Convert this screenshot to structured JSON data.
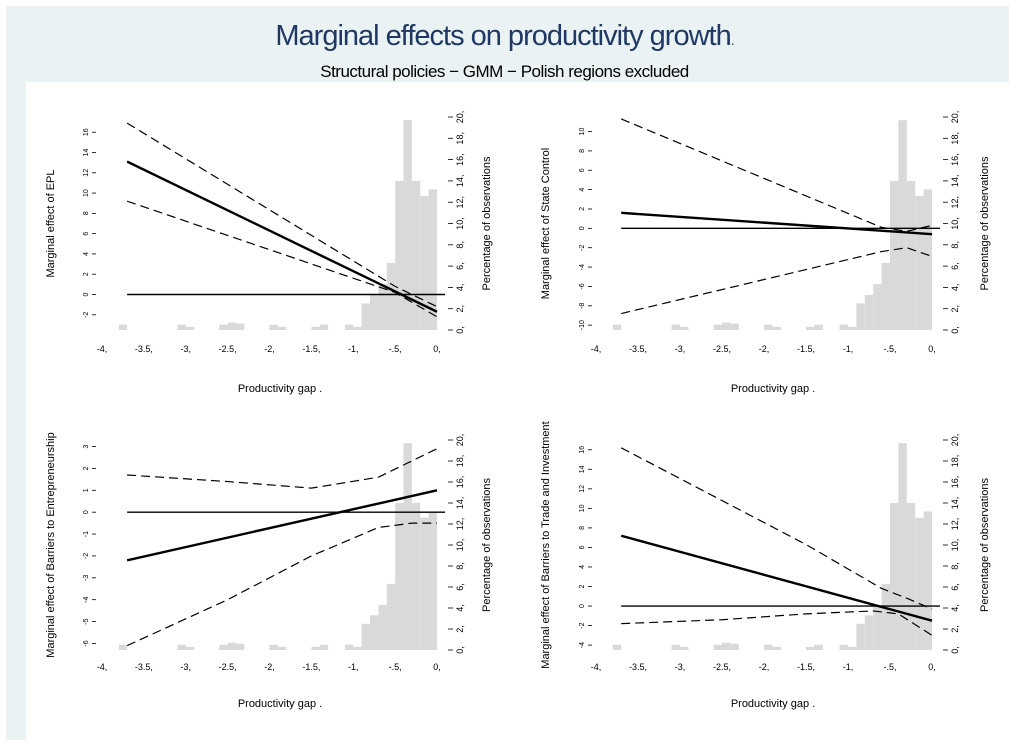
{
  "title": "Marginal effects on productivity growth",
  "title_suffix": ".",
  "subtitle": "Structural policies − GMM − Polish regions excluded",
  "colors": {
    "title": "#1f3864",
    "background": "#eaf2f3",
    "histogram": "#d9d9d9",
    "lines": "#000000"
  },
  "chart_data": [
    {
      "type": "line",
      "xlabel": "Productivity gap",
      "ylabel": "Marginal effect of EPL",
      "y2label": "Percentage of observations",
      "xlim": [
        -4,
        0
      ],
      "xticks": [
        -4,
        -3.5,
        -3,
        -2.5,
        -2,
        -1.5,
        -1,
        -0.5,
        0
      ],
      "xtick_labels": [
        "-4,",
        "-3.5,",
        "-3,",
        "-2.5,",
        "-2,",
        "-1.5,",
        "-1,",
        "-.5,",
        "0,"
      ],
      "ylim": [
        -3.5,
        17.5
      ],
      "yticks": [
        -2,
        0,
        2,
        4,
        6,
        8,
        10,
        12,
        14,
        16
      ],
      "ytick_labels": [
        "-2",
        "0",
        "2",
        "4",
        "6",
        "8",
        "10",
        "12",
        "14",
        "16"
      ],
      "y2lim": [
        0,
        20
      ],
      "y2ticks": [
        0,
        2,
        4,
        6,
        8,
        10,
        12,
        14,
        16,
        18,
        20
      ],
      "y2tick_labels": [
        "0,",
        "2,",
        "4,",
        "6,",
        "8,",
        "10,",
        "12,",
        "14,",
        "16,",
        "18,",
        "20,"
      ],
      "zero_line": 0,
      "series": [
        {
          "role": "estimate",
          "x": [
            -3.7,
            0
          ],
          "y": [
            13.1,
            -1.7
          ]
        },
        {
          "role": "ci_upper",
          "x": [
            -3.7,
            -0.5,
            0
          ],
          "y": [
            16.9,
            0.8,
            -1.2
          ]
        },
        {
          "role": "ci_lower",
          "x": [
            -3.7,
            -0.5,
            0
          ],
          "y": [
            9.2,
            0.2,
            -2.2
          ]
        }
      ],
      "histogram": {
        "bin_width": 0.1,
        "bins": [
          {
            "x": -3.75,
            "pct": 0.5
          },
          {
            "x": -3.05,
            "pct": 0.5
          },
          {
            "x": -2.95,
            "pct": 0.3
          },
          {
            "x": -2.55,
            "pct": 0.5
          },
          {
            "x": -2.45,
            "pct": 0.7
          },
          {
            "x": -2.35,
            "pct": 0.6
          },
          {
            "x": -1.95,
            "pct": 0.5
          },
          {
            "x": -1.85,
            "pct": 0.3
          },
          {
            "x": -1.45,
            "pct": 0.3
          },
          {
            "x": -1.35,
            "pct": 0.5
          },
          {
            "x": -1.05,
            "pct": 0.5
          },
          {
            "x": -0.95,
            "pct": 0.3
          },
          {
            "x": -0.85,
            "pct": 2.5
          },
          {
            "x": -0.75,
            "pct": 3.3
          },
          {
            "x": -0.65,
            "pct": 4.3
          },
          {
            "x": -0.55,
            "pct": 6.3
          },
          {
            "x": -0.45,
            "pct": 14.0
          },
          {
            "x": -0.35,
            "pct": 19.7
          },
          {
            "x": -0.25,
            "pct": 14.0
          },
          {
            "x": -0.15,
            "pct": 12.6
          },
          {
            "x": -0.05,
            "pct": 13.2
          }
        ]
      }
    },
    {
      "type": "line",
      "xlabel": "Productivity gap",
      "ylabel": "Marginal effect of State Control",
      "y2label": "Percentage of observations",
      "xlim": [
        -4,
        0
      ],
      "xticks": [
        -4,
        -3.5,
        -3,
        -2.5,
        -2,
        -1.5,
        -1,
        -0.5,
        0
      ],
      "xtick_labels": [
        "-4,",
        "-3.5,",
        "-3,",
        "-2.5,",
        "-2,",
        "-1.5,",
        "-1,",
        "-.5,",
        "0,"
      ],
      "ylim": [
        -10.5,
        11.5
      ],
      "yticks": [
        -10,
        -8,
        -6,
        -4,
        -2,
        0,
        2,
        4,
        6,
        8,
        10
      ],
      "ytick_labels": [
        "-10",
        "-8",
        "-6",
        "-4",
        "-2",
        "0",
        "2",
        "4",
        "6",
        "8",
        "10"
      ],
      "y2lim": [
        0,
        20
      ],
      "y2ticks": [
        0,
        2,
        4,
        6,
        8,
        10,
        12,
        14,
        16,
        18,
        20
      ],
      "y2tick_labels": [
        "0,",
        "2,",
        "4,",
        "6,",
        "8,",
        "10,",
        "12,",
        "14,",
        "16,",
        "18,",
        "20,"
      ],
      "zero_line": 0,
      "series": [
        {
          "role": "estimate",
          "x": [
            -3.7,
            0
          ],
          "y": [
            1.6,
            -0.6
          ]
        },
        {
          "role": "ci_upper",
          "x": [
            -3.7,
            -0.6,
            -0.3,
            0
          ],
          "y": [
            11.3,
            0.1,
            -0.3,
            0.3
          ]
        },
        {
          "role": "ci_lower",
          "x": [
            -3.7,
            -0.6,
            -0.3,
            0
          ],
          "y": [
            -8.8,
            -2.4,
            -2.0,
            -2.9
          ]
        }
      ],
      "histogram": {
        "bin_width": 0.1,
        "bins": [
          {
            "x": -3.75,
            "pct": 0.5
          },
          {
            "x": -3.05,
            "pct": 0.5
          },
          {
            "x": -2.95,
            "pct": 0.3
          },
          {
            "x": -2.55,
            "pct": 0.5
          },
          {
            "x": -2.45,
            "pct": 0.7
          },
          {
            "x": -2.35,
            "pct": 0.6
          },
          {
            "x": -1.95,
            "pct": 0.5
          },
          {
            "x": -1.85,
            "pct": 0.3
          },
          {
            "x": -1.45,
            "pct": 0.3
          },
          {
            "x": -1.35,
            "pct": 0.5
          },
          {
            "x": -1.05,
            "pct": 0.5
          },
          {
            "x": -0.95,
            "pct": 0.3
          },
          {
            "x": -0.85,
            "pct": 2.5
          },
          {
            "x": -0.75,
            "pct": 3.3
          },
          {
            "x": -0.65,
            "pct": 4.3
          },
          {
            "x": -0.55,
            "pct": 6.3
          },
          {
            "x": -0.45,
            "pct": 14.0
          },
          {
            "x": -0.35,
            "pct": 19.7
          },
          {
            "x": -0.25,
            "pct": 14.0
          },
          {
            "x": -0.15,
            "pct": 12.6
          },
          {
            "x": -0.05,
            "pct": 13.2
          }
        ]
      }
    },
    {
      "type": "line",
      "xlabel": "Productivity gap",
      "ylabel": "Marginal effect of Barriers to Entrepreneurship",
      "y2label": "Percentage of observations",
      "xlim": [
        -4,
        0
      ],
      "xticks": [
        -4,
        -3.5,
        -3,
        -2.5,
        -2,
        -1.5,
        -1,
        -0.5,
        0
      ],
      "xtick_labels": [
        "-4,",
        "-3.5,",
        "-3,",
        "-2.5,",
        "-2,",
        "-1.5,",
        "-1,",
        "-.5,",
        "0,"
      ],
      "ylim": [
        -6.3,
        3.3
      ],
      "yticks": [
        -6,
        -5,
        -4,
        -3,
        -2,
        -1,
        0,
        1,
        2,
        3
      ],
      "ytick_labels": [
        "-6",
        "-5",
        "-4",
        "-3",
        "-2",
        "-1",
        "0",
        "1",
        "2",
        "3"
      ],
      "y2lim": [
        0,
        20
      ],
      "y2ticks": [
        0,
        2,
        4,
        6,
        8,
        10,
        12,
        14,
        16,
        18,
        20
      ],
      "y2tick_labels": [
        "0,",
        "2,",
        "4,",
        "6,",
        "8,",
        "10,",
        "12,",
        "14,",
        "16,",
        "18,",
        "20,"
      ],
      "zero_line": 0,
      "series": [
        {
          "role": "estimate",
          "x": [
            -3.7,
            0
          ],
          "y": [
            -2.2,
            1.0
          ]
        },
        {
          "role": "ci_upper",
          "x": [
            -3.7,
            -2.5,
            -1.5,
            -0.7,
            0
          ],
          "y": [
            1.7,
            1.4,
            1.1,
            1.6,
            2.9
          ]
        },
        {
          "role": "ci_lower",
          "x": [
            -3.7,
            -2.5,
            -1.5,
            -0.7,
            -0.3,
            0
          ],
          "y": [
            -6.1,
            -4.0,
            -2.0,
            -0.7,
            -0.5,
            -0.5
          ]
        }
      ],
      "histogram": {
        "bin_width": 0.1,
        "bins": [
          {
            "x": -3.75,
            "pct": 0.5
          },
          {
            "x": -3.05,
            "pct": 0.5
          },
          {
            "x": -2.95,
            "pct": 0.3
          },
          {
            "x": -2.55,
            "pct": 0.5
          },
          {
            "x": -2.45,
            "pct": 0.7
          },
          {
            "x": -2.35,
            "pct": 0.6
          },
          {
            "x": -1.95,
            "pct": 0.5
          },
          {
            "x": -1.85,
            "pct": 0.3
          },
          {
            "x": -1.45,
            "pct": 0.3
          },
          {
            "x": -1.35,
            "pct": 0.5
          },
          {
            "x": -1.05,
            "pct": 0.5
          },
          {
            "x": -0.95,
            "pct": 0.3
          },
          {
            "x": -0.85,
            "pct": 2.5
          },
          {
            "x": -0.75,
            "pct": 3.3
          },
          {
            "x": -0.65,
            "pct": 4.3
          },
          {
            "x": -0.55,
            "pct": 6.3
          },
          {
            "x": -0.45,
            "pct": 14.0
          },
          {
            "x": -0.35,
            "pct": 19.7
          },
          {
            "x": -0.25,
            "pct": 14.0
          },
          {
            "x": -0.15,
            "pct": 12.6
          },
          {
            "x": -0.05,
            "pct": 13.2
          }
        ]
      }
    },
    {
      "type": "line",
      "xlabel": "Productivity gap",
      "ylabel": "Marginal effect of Barriers to Trade and Investment",
      "y2label": "Percentage of observations",
      "xlim": [
        -4,
        0
      ],
      "xticks": [
        -4,
        -3.5,
        -3,
        -2.5,
        -2,
        -1.5,
        -1,
        -0.5,
        0
      ],
      "xtick_labels": [
        "-4,",
        "-3.5,",
        "-3,",
        "-2.5,",
        "-2,",
        "-1.5,",
        "-1,",
        "-.5,",
        "0,"
      ],
      "ylim": [
        -4.5,
        17
      ],
      "yticks": [
        -4,
        -2,
        0,
        2,
        4,
        6,
        8,
        10,
        12,
        14,
        16
      ],
      "ytick_labels": [
        "-4",
        "-2",
        "0",
        "2",
        "4",
        "6",
        "8",
        "10",
        "12",
        "14",
        "16"
      ],
      "y2lim": [
        0,
        20
      ],
      "y2ticks": [
        0,
        2,
        4,
        6,
        8,
        10,
        12,
        14,
        16,
        18,
        20
      ],
      "y2tick_labels": [
        "0,",
        "2,",
        "4,",
        "6,",
        "8,",
        "10,",
        "12,",
        "14,",
        "16,",
        "18,",
        "20,"
      ],
      "zero_line": 0,
      "series": [
        {
          "role": "estimate",
          "x": [
            -3.7,
            0
          ],
          "y": [
            7.2,
            -1.5
          ]
        },
        {
          "role": "ci_upper",
          "x": [
            -3.7,
            -1.5,
            -0.6,
            -0.3,
            0
          ],
          "y": [
            16.2,
            6.3,
            1.8,
            0.8,
            -0.3
          ]
        },
        {
          "role": "ci_lower",
          "x": [
            -3.7,
            -2.5,
            -1.5,
            -0.7,
            -0.4,
            0
          ],
          "y": [
            -1.8,
            -1.4,
            -0.8,
            -0.5,
            -0.8,
            -3.0
          ]
        }
      ],
      "histogram": {
        "bin_width": 0.1,
        "bins": [
          {
            "x": -3.75,
            "pct": 0.5
          },
          {
            "x": -3.05,
            "pct": 0.5
          },
          {
            "x": -2.95,
            "pct": 0.3
          },
          {
            "x": -2.55,
            "pct": 0.5
          },
          {
            "x": -2.45,
            "pct": 0.7
          },
          {
            "x": -2.35,
            "pct": 0.6
          },
          {
            "x": -1.95,
            "pct": 0.5
          },
          {
            "x": -1.85,
            "pct": 0.3
          },
          {
            "x": -1.45,
            "pct": 0.3
          },
          {
            "x": -1.35,
            "pct": 0.5
          },
          {
            "x": -1.05,
            "pct": 0.5
          },
          {
            "x": -0.95,
            "pct": 0.3
          },
          {
            "x": -0.85,
            "pct": 2.5
          },
          {
            "x": -0.75,
            "pct": 3.3
          },
          {
            "x": -0.65,
            "pct": 4.3
          },
          {
            "x": -0.55,
            "pct": 6.3
          },
          {
            "x": -0.45,
            "pct": 14.0
          },
          {
            "x": -0.35,
            "pct": 19.7
          },
          {
            "x": -0.25,
            "pct": 14.0
          },
          {
            "x": -0.15,
            "pct": 12.6
          },
          {
            "x": -0.05,
            "pct": 13.2
          }
        ]
      }
    }
  ]
}
